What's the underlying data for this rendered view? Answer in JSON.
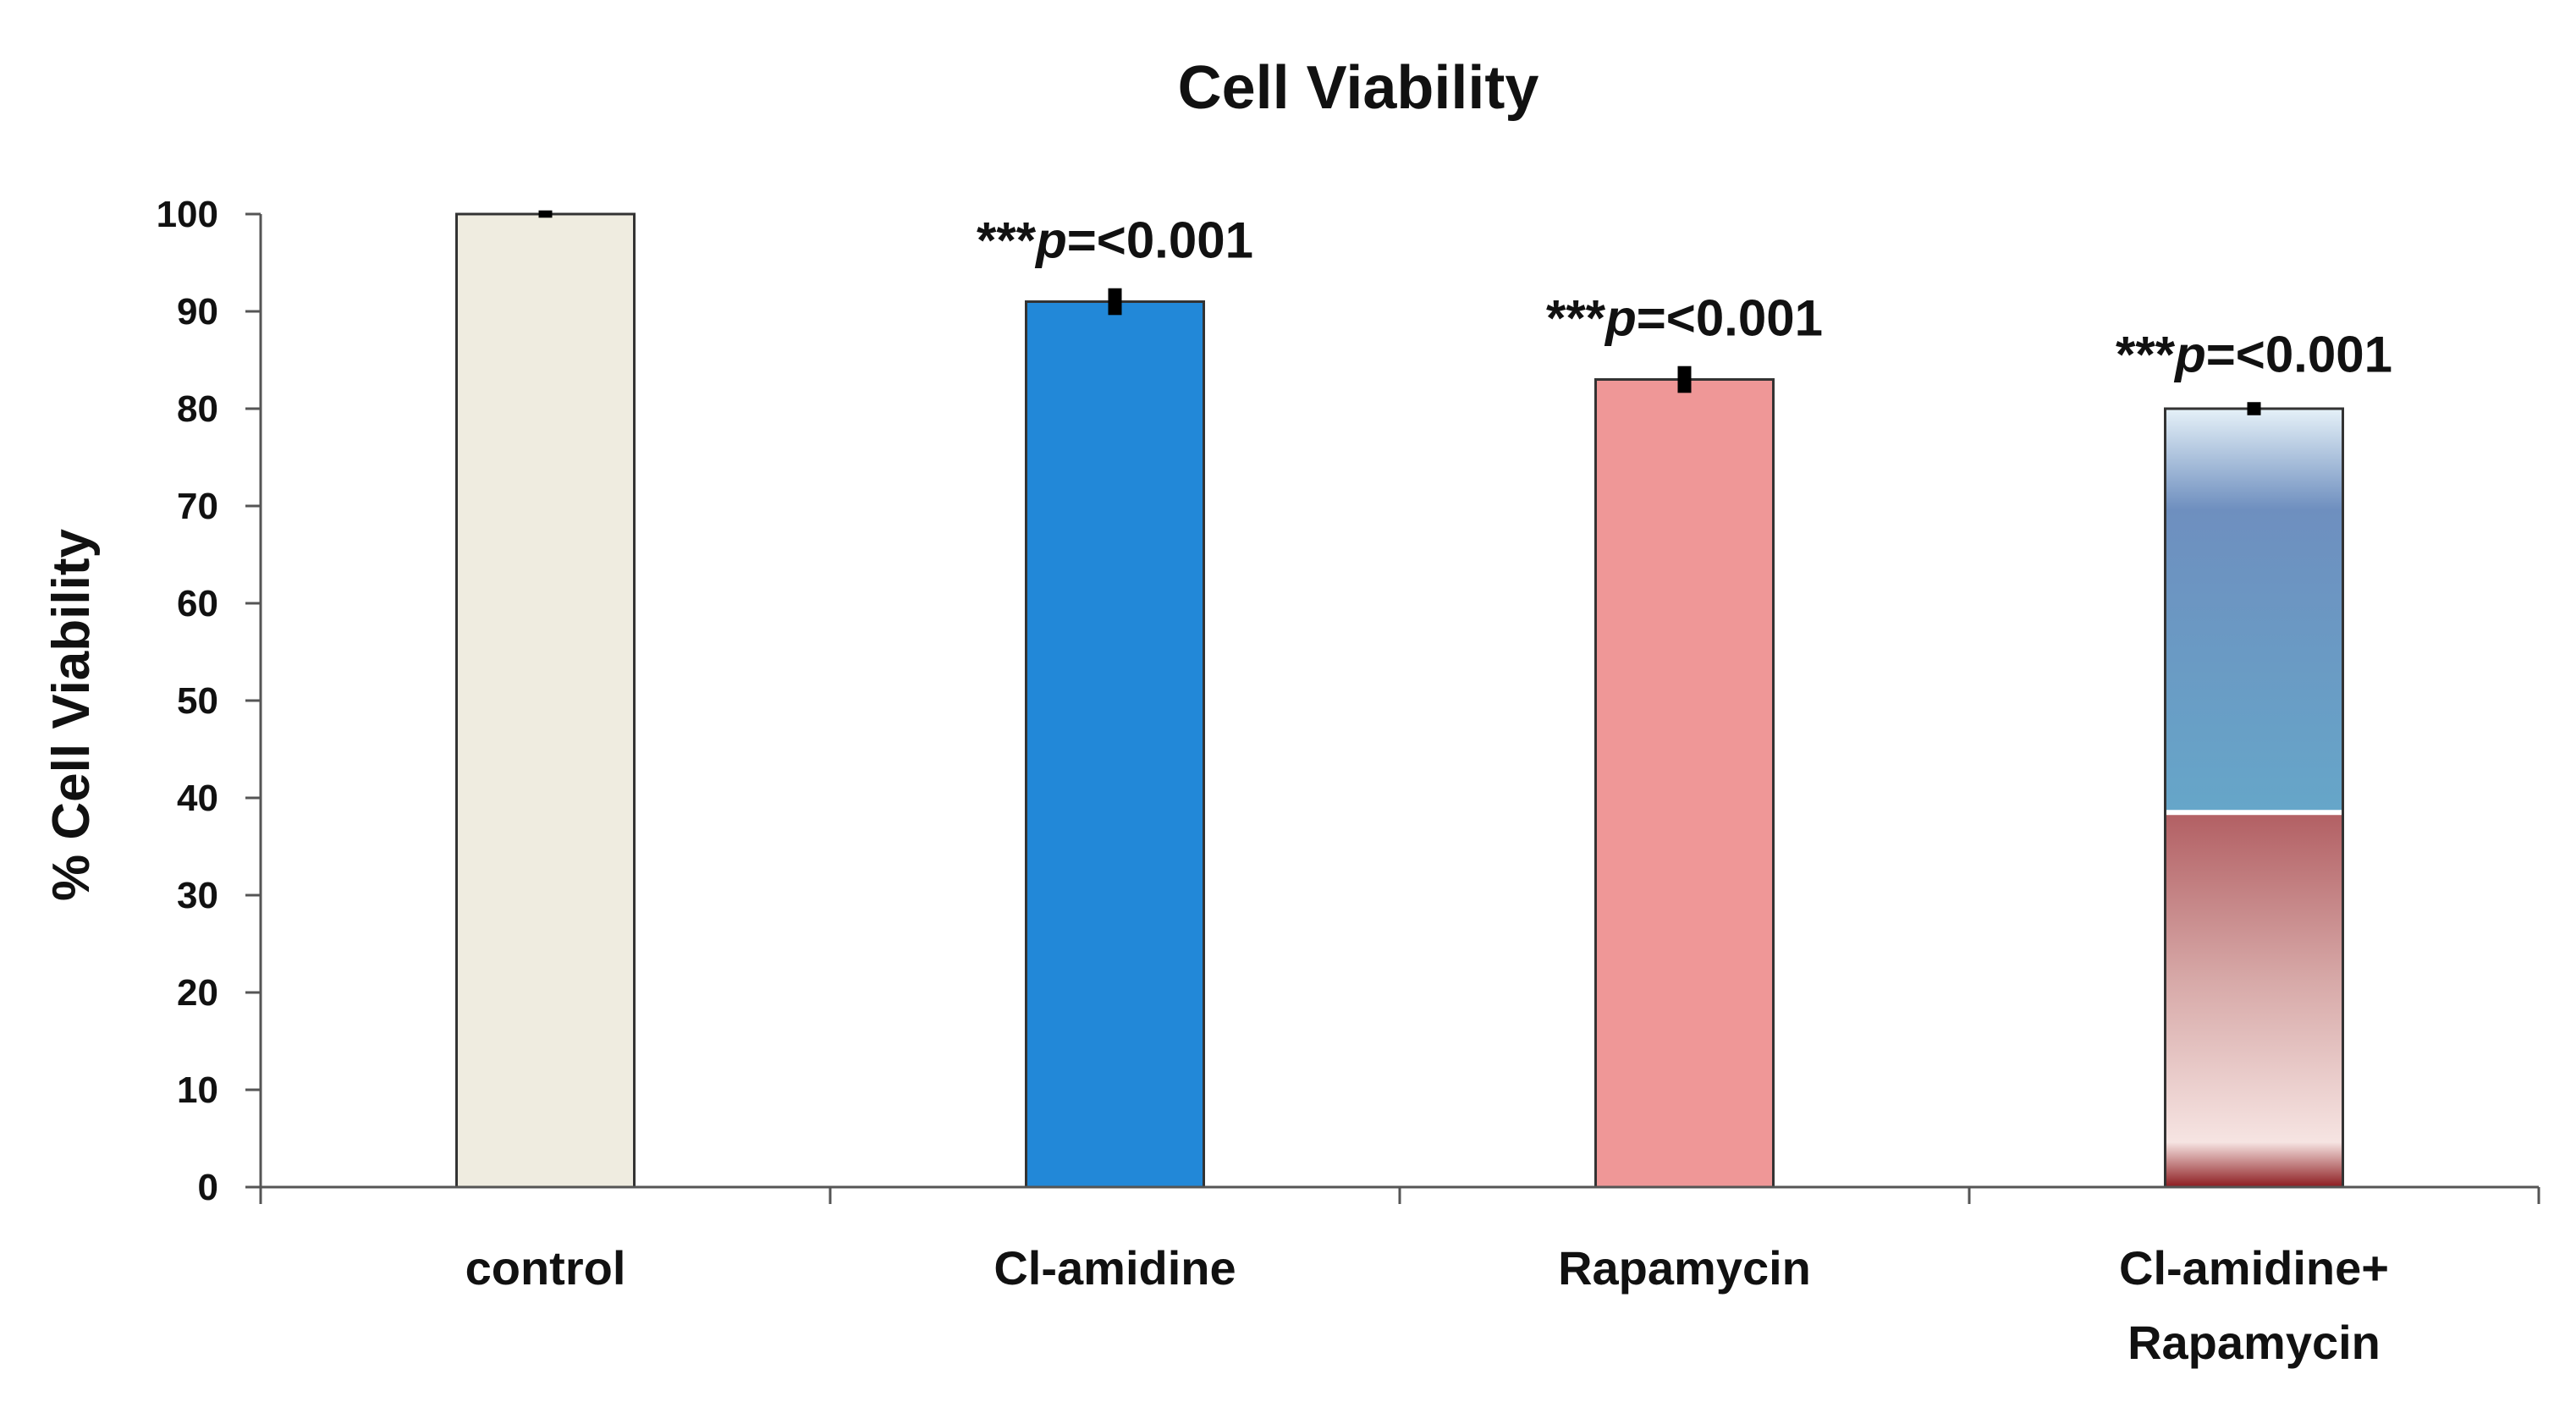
{
  "chart_data": {
    "type": "bar",
    "title": "Cell Viability",
    "xlabel": "",
    "ylabel": "% Cell Viability",
    "ylim": [
      0,
      100
    ],
    "yticks": [
      0,
      10,
      20,
      30,
      40,
      50,
      60,
      70,
      80,
      90,
      100
    ],
    "categories": [
      {
        "line1": "control",
        "line2": ""
      },
      {
        "line1": "Cl-amidine",
        "line2": ""
      },
      {
        "line1": "Rapamycin",
        "line2": ""
      },
      {
        "line1": "Cl-amidine+",
        "line2": "Rapamycin"
      }
    ],
    "values": [
      100,
      91,
      83,
      80
    ],
    "errors": [
      0.2,
      1.2,
      1.2,
      0.5
    ],
    "annotations": [
      null,
      {
        "stars": "***",
        "p": "p",
        "rest": "=<0.001"
      },
      {
        "stars": "***",
        "p": "p",
        "rest": "=<0.001"
      },
      {
        "stars": "***",
        "p": "p",
        "rest": "=<0.001"
      }
    ],
    "colors": [
      "#efece0",
      "#2288d8",
      "#ef9797",
      "gradient"
    ],
    "combo_split_value": 38.5,
    "gradient_colors": {
      "blue_top": "#e6f1f8",
      "blue_mid": "#6e8fbf",
      "blue_bottom": "#66a6c9",
      "red_top": "#b25f63",
      "red_mid": "#d7a9a8",
      "red_low": "#f6e4e2",
      "red_base": "#8c1b1f"
    }
  }
}
